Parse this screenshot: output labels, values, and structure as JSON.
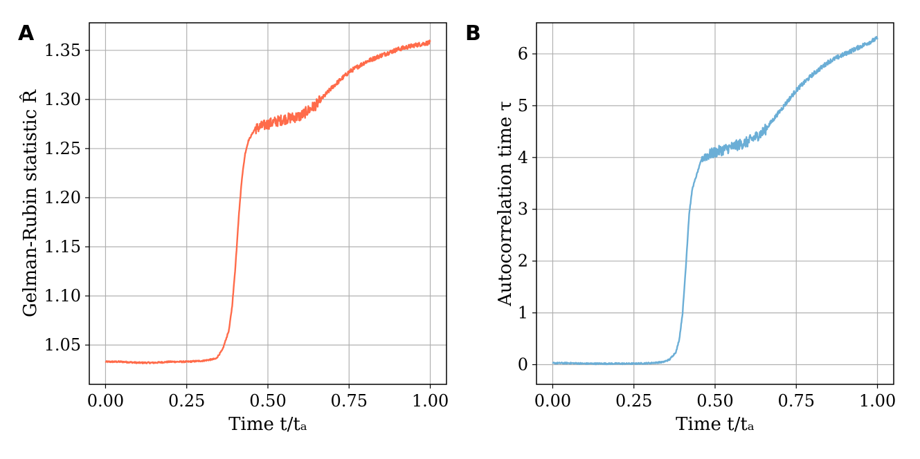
{
  "chart_data": [
    {
      "type": "line",
      "panel_label": "A",
      "title": "",
      "xlabel": "Time t/tₐ",
      "ylabel": "Gelman-Rubin statistic R̂",
      "xlim": [
        -0.05,
        1.05
      ],
      "ylim": [
        1.01,
        1.378
      ],
      "xticks": [
        0.0,
        0.25,
        0.5,
        0.75,
        1.0
      ],
      "xtick_labels": [
        "0.00",
        "0.25",
        "0.50",
        "0.75",
        "1.00"
      ],
      "yticks": [
        1.05,
        1.1,
        1.15,
        1.2,
        1.25,
        1.3,
        1.35
      ],
      "ytick_labels": [
        "1.05",
        "1.10",
        "1.15",
        "1.20",
        "1.25",
        "1.30",
        "1.35"
      ],
      "grid": true,
      "series": [
        {
          "name": "R-hat",
          "color": "#ff6b4a",
          "x": [
            0.0,
            0.05,
            0.1,
            0.15,
            0.2,
            0.25,
            0.3,
            0.34,
            0.36,
            0.38,
            0.39,
            0.4,
            0.41,
            0.42,
            0.43,
            0.44,
            0.46,
            0.5,
            0.55,
            0.6,
            0.65,
            0.7,
            0.75,
            0.8,
            0.85,
            0.9,
            0.95,
            1.0
          ],
          "y": [
            1.033,
            1.033,
            1.032,
            1.032,
            1.033,
            1.033,
            1.034,
            1.036,
            1.045,
            1.065,
            1.09,
            1.13,
            1.18,
            1.22,
            1.245,
            1.258,
            1.27,
            1.275,
            1.28,
            1.283,
            1.295,
            1.313,
            1.328,
            1.338,
            1.345,
            1.351,
            1.355,
            1.358
          ]
        }
      ]
    },
    {
      "type": "line",
      "panel_label": "B",
      "title": "",
      "xlabel": "Time t/tₐ",
      "ylabel": "Autocorrelation time τ",
      "xlim": [
        -0.05,
        1.05
      ],
      "ylim": [
        -0.38,
        6.6
      ],
      "xticks": [
        0.0,
        0.25,
        0.5,
        0.75,
        1.0
      ],
      "xtick_labels": [
        "0.00",
        "0.25",
        "0.50",
        "0.75",
        "1.00"
      ],
      "yticks": [
        0,
        1,
        2,
        3,
        4,
        5,
        6
      ],
      "ytick_labels": [
        "0",
        "1",
        "2",
        "3",
        "4",
        "5",
        "6"
      ],
      "grid": true,
      "series": [
        {
          "name": "tau",
          "color": "#6baed6",
          "x": [
            0.0,
            0.05,
            0.1,
            0.15,
            0.2,
            0.25,
            0.3,
            0.34,
            0.36,
            0.38,
            0.39,
            0.4,
            0.41,
            0.42,
            0.43,
            0.44,
            0.46,
            0.5,
            0.55,
            0.6,
            0.65,
            0.7,
            0.75,
            0.8,
            0.85,
            0.9,
            0.95,
            1.0
          ],
          "y": [
            0.03,
            0.03,
            0.02,
            0.02,
            0.02,
            0.02,
            0.03,
            0.05,
            0.1,
            0.25,
            0.5,
            1.0,
            1.9,
            2.9,
            3.4,
            3.6,
            4.0,
            4.1,
            4.2,
            4.3,
            4.5,
            4.9,
            5.3,
            5.6,
            5.85,
            6.0,
            6.15,
            6.3
          ]
        }
      ]
    }
  ]
}
